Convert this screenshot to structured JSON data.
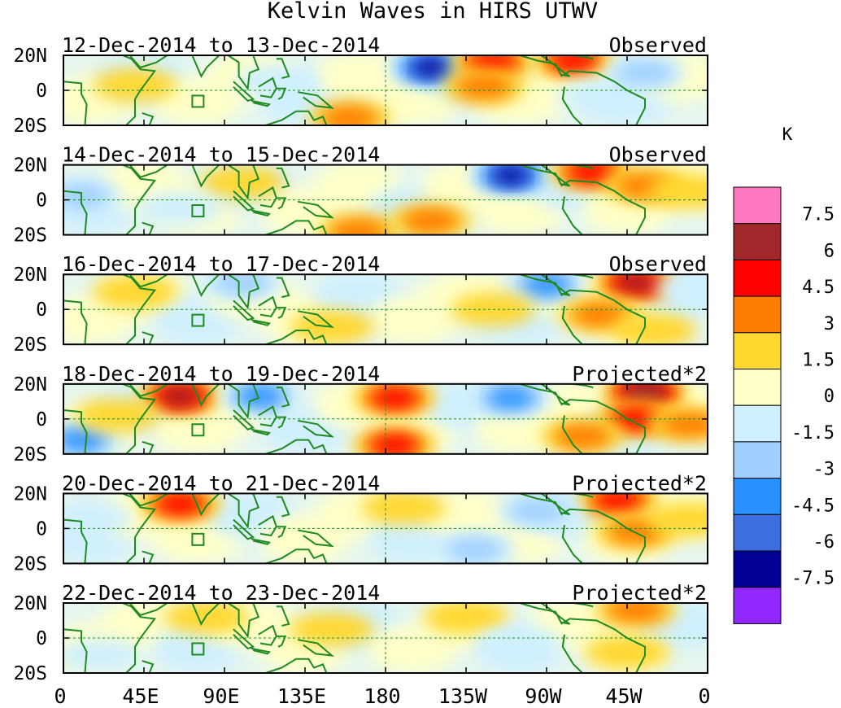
{
  "chart_data": {
    "type": "heatmap",
    "title": "Kelvin Waves in HIRS UTWV",
    "units": "K",
    "x_ticks": [
      "0",
      "45E",
      "90E",
      "135E",
      "180",
      "135W",
      "90W",
      "45W",
      "0"
    ],
    "y_ticks": [
      "20N",
      "0",
      "20S"
    ],
    "lon_range_deg_east": [
      0,
      360
    ],
    "lat_range": [
      -20,
      20
    ],
    "panels": [
      {
        "date_range": "12-Dec-2014 to 13-Dec-2014",
        "label": "Observed"
      },
      {
        "date_range": "14-Dec-2014 to 15-Dec-2014",
        "label": "Observed"
      },
      {
        "date_range": "16-Dec-2014 to 17-Dec-2014",
        "label": "Observed"
      },
      {
        "date_range": "18-Dec-2014 to 19-Dec-2014",
        "label": "Projected*2"
      },
      {
        "date_range": "20-Dec-2014 to 21-Dec-2014",
        "label": "Projected*2"
      },
      {
        "date_range": "22-Dec-2014 to 23-Dec-2014",
        "label": "Projected*2"
      }
    ],
    "colorbar": {
      "labels": [
        "7.5",
        "6",
        "4.5",
        "3",
        "1.5",
        "0",
        "-1.5",
        "-3",
        "-4.5",
        "-6",
        "-7.5"
      ],
      "colors": [
        "#ff78c0",
        "#a0282a",
        "#ff0000",
        "#ff7d00",
        "#ffd830",
        "#ffffc8",
        "#d0f0ff",
        "#a0d0ff",
        "#2890ff",
        "#3c6ee0",
        "#000096",
        "#9028ff"
      ]
    },
    "anomalies": [
      [
        {
          "lon": 205,
          "lat": 13,
          "value": -7.5
        },
        {
          "lon": 240,
          "lat": 16,
          "value": 4.5
        },
        {
          "lon": 285,
          "lat": 17,
          "value": 4.5
        },
        {
          "lon": 235,
          "lat": 2,
          "value": 3
        },
        {
          "lon": 160,
          "lat": -16,
          "value": 3
        },
        {
          "lon": 40,
          "lat": 3,
          "value": 1.5
        },
        {
          "lon": 120,
          "lat": 5,
          "value": -1.5
        },
        {
          "lon": 300,
          "lat": -3,
          "value": -1.5
        },
        {
          "lon": 325,
          "lat": 10,
          "value": -3
        }
      ],
      [
        {
          "lon": 250,
          "lat": 14,
          "value": -7.5
        },
        {
          "lon": 295,
          "lat": 16,
          "value": 4.5
        },
        {
          "lon": 325,
          "lat": 8,
          "value": 3
        },
        {
          "lon": 205,
          "lat": -12,
          "value": 3
        },
        {
          "lon": 165,
          "lat": -18,
          "value": 3
        },
        {
          "lon": 100,
          "lat": 10,
          "value": 1.5
        },
        {
          "lon": 10,
          "lat": 2,
          "value": -3
        },
        {
          "lon": 350,
          "lat": 5,
          "value": 1.5
        },
        {
          "lon": 65,
          "lat": -5,
          "value": -1.5
        }
      ],
      [
        {
          "lon": 270,
          "lat": 14,
          "value": -4.5
        },
        {
          "lon": 320,
          "lat": 15,
          "value": 6
        },
        {
          "lon": 300,
          "lat": -3,
          "value": 3
        },
        {
          "lon": 240,
          "lat": 0,
          "value": 1.5
        },
        {
          "lon": 100,
          "lat": 15,
          "value": -3
        },
        {
          "lon": 150,
          "lat": -10,
          "value": 1.5
        },
        {
          "lon": 40,
          "lat": 10,
          "value": 1.5
        },
        {
          "lon": 355,
          "lat": 12,
          "value": -1.5
        },
        {
          "lon": 330,
          "lat": -12,
          "value": 1.5
        }
      ],
      [
        {
          "lon": 65,
          "lat": 13,
          "value": 6
        },
        {
          "lon": 185,
          "lat": 12,
          "value": 4.5
        },
        {
          "lon": 185,
          "lat": -15,
          "value": 4.5
        },
        {
          "lon": 325,
          "lat": 15,
          "value": 7.5
        },
        {
          "lon": 320,
          "lat": 0,
          "value": 4.5
        },
        {
          "lon": 110,
          "lat": 13,
          "value": -4.5
        },
        {
          "lon": 250,
          "lat": 12,
          "value": -4.5
        },
        {
          "lon": 10,
          "lat": -12,
          "value": -4.5
        },
        {
          "lon": 290,
          "lat": -10,
          "value": 3
        },
        {
          "lon": 350,
          "lat": -3,
          "value": 3
        },
        {
          "lon": 30,
          "lat": 2,
          "value": 1.5
        }
      ],
      [
        {
          "lon": 65,
          "lat": 14,
          "value": 4.5
        },
        {
          "lon": 310,
          "lat": 16,
          "value": 4.5
        },
        {
          "lon": 320,
          "lat": -2,
          "value": 3
        },
        {
          "lon": 265,
          "lat": 10,
          "value": -3
        },
        {
          "lon": 190,
          "lat": 12,
          "value": 1.5
        },
        {
          "lon": 230,
          "lat": -12,
          "value": -3
        },
        {
          "lon": 350,
          "lat": 5,
          "value": 1.5
        },
        {
          "lon": 15,
          "lat": 6,
          "value": -1.5
        }
      ],
      [
        {
          "lon": 320,
          "lat": 16,
          "value": 3
        },
        {
          "lon": 225,
          "lat": 12,
          "value": 1.5
        },
        {
          "lon": 315,
          "lat": -8,
          "value": 1.5
        },
        {
          "lon": 80,
          "lat": 12,
          "value": 1.5
        },
        {
          "lon": 150,
          "lat": 5,
          "value": 1.5
        },
        {
          "lon": 255,
          "lat": -3,
          "value": -1.5
        },
        {
          "lon": 20,
          "lat": -10,
          "value": -1.5
        }
      ]
    ],
    "grid": "dashed reference lines at 0 latitude and 180 longitude",
    "legend": "right"
  }
}
